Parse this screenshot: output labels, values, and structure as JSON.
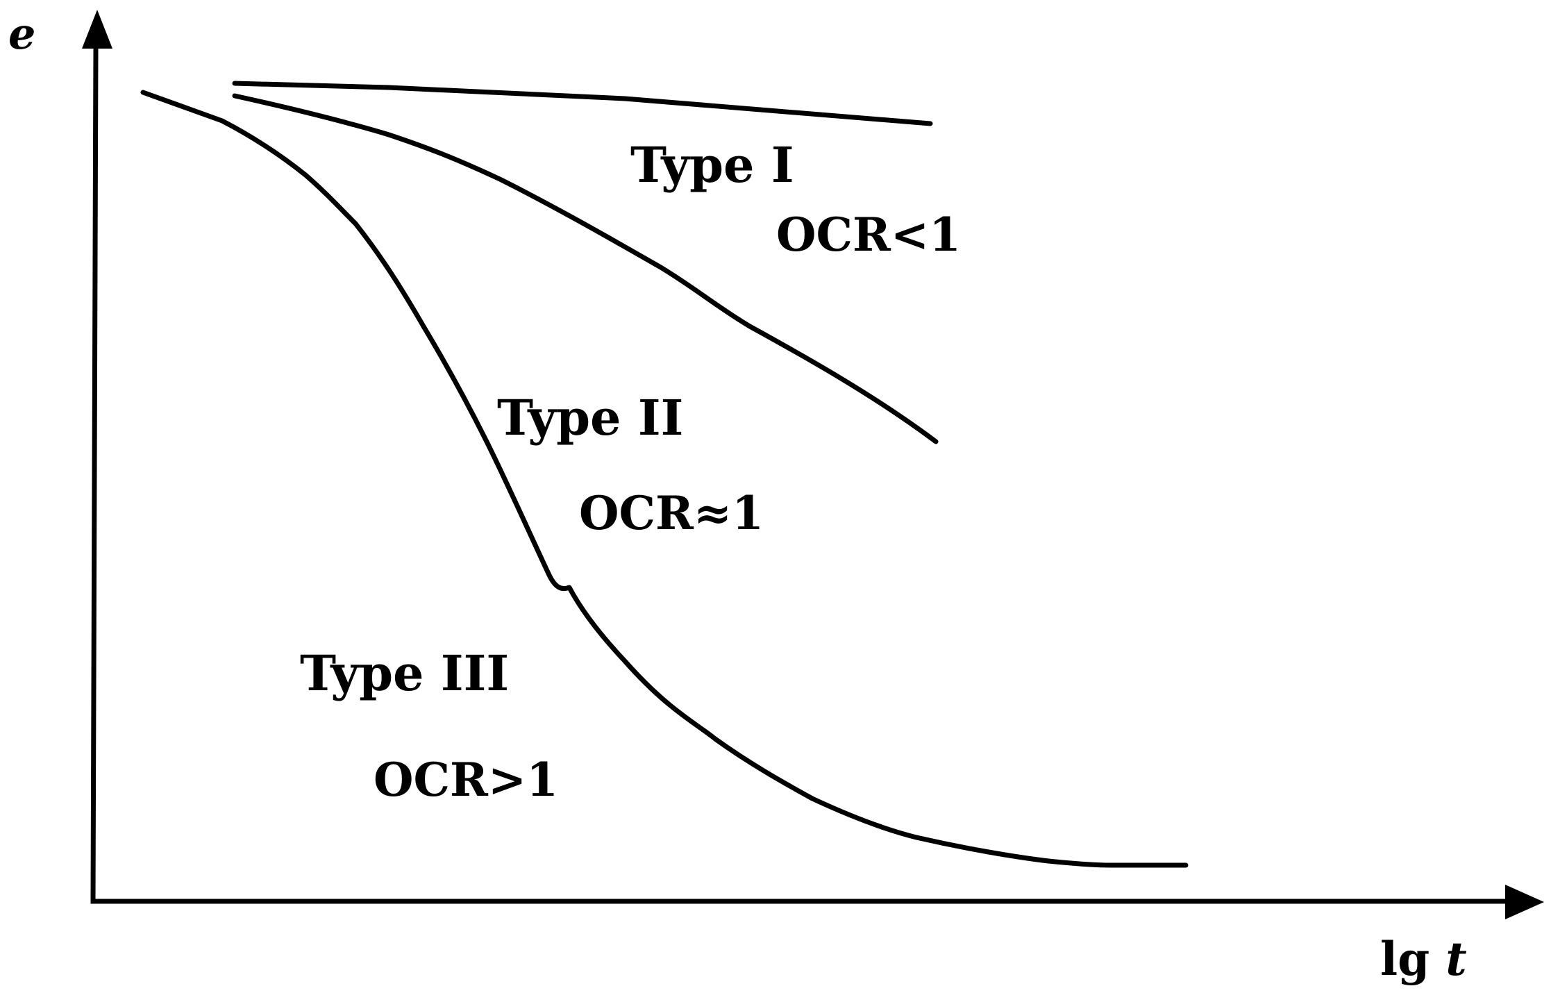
{
  "axes": {
    "y_label": "e",
    "x_label_prefix": "lg ",
    "x_label_var": "t"
  },
  "curves": [
    {
      "type_label": "Type I",
      "ocr_label": "OCR<1"
    },
    {
      "type_label": "Type II",
      "ocr_label": "OCR≈1"
    },
    {
      "type_label": "Type III",
      "ocr_label": "OCR>1"
    }
  ],
  "colors": {
    "stroke": "#000000",
    "background": "#ffffff"
  }
}
